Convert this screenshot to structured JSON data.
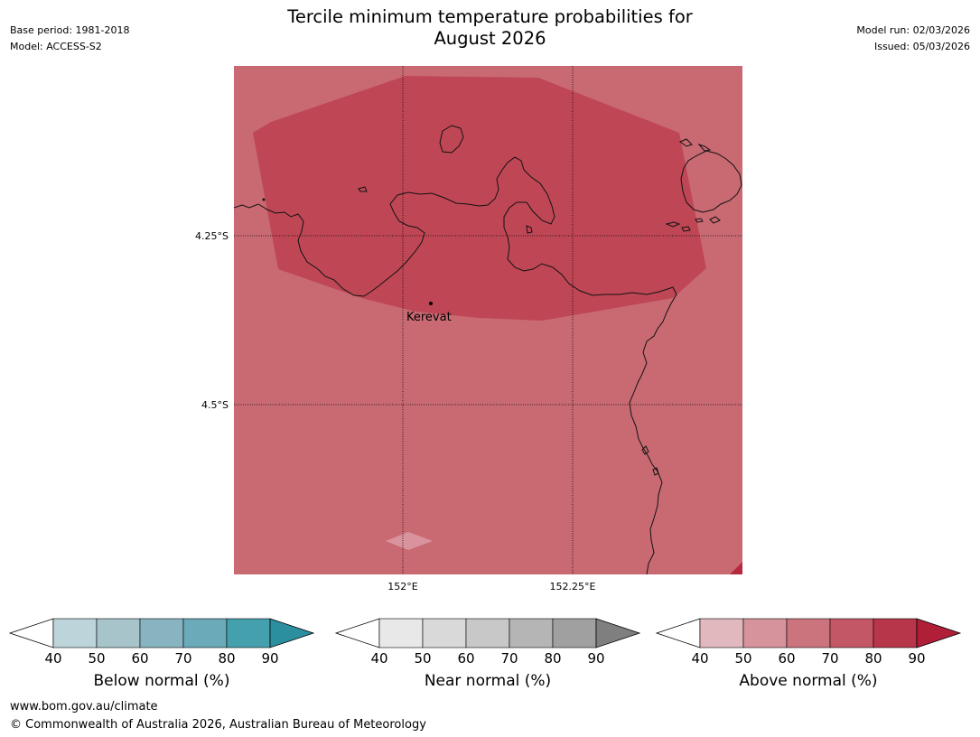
{
  "title_line1": "Tercile minimum temperature probabilities for",
  "title_line2": "August 2026",
  "meta_left": {
    "base_period": "Base period: 1981-2018",
    "model": "Model: ACCESS-S2"
  },
  "meta_right": {
    "model_run": "Model run: 02/03/2026",
    "issued": "Issued: 05/03/2026"
  },
  "map": {
    "lat_labels": [
      "4.25°S",
      "4.5°S"
    ],
    "lon_labels": [
      "152°E",
      "152.25°E"
    ],
    "place": {
      "name": "Kerevat",
      "icon": "location-dot-icon"
    },
    "colors": {
      "background_60_70": "#c96a73",
      "region_70_80": "#bf4755",
      "patch_50_60": "#d9939d",
      "corner_80_90": "#b52a40",
      "coastline": "#111111"
    }
  },
  "colorbars": [
    {
      "label": "Below normal (%)",
      "ticks": [
        "40",
        "50",
        "60",
        "70",
        "80",
        "90"
      ],
      "colors": [
        "#ffffff",
        "#bdd4da",
        "#a6c4ca",
        "#87b4c0",
        "#6aaab9",
        "#45a0ae",
        "#2b8fa0"
      ]
    },
    {
      "label": "Near normal (%)",
      "ticks": [
        "40",
        "50",
        "60",
        "70",
        "80",
        "90"
      ],
      "colors": [
        "#ffffff",
        "#e8e8e8",
        "#d9d9d9",
        "#c8c8c8",
        "#b5b5b5",
        "#a0a0a0",
        "#7f7f7f"
      ]
    },
    {
      "label": "Above normal (%)",
      "ticks": [
        "40",
        "50",
        "60",
        "70",
        "80",
        "90"
      ],
      "colors": [
        "#ffffff",
        "#e1b8be",
        "#d6939c",
        "#cc747e",
        "#c45766",
        "#b8364a",
        "#b01e38"
      ]
    }
  ],
  "footer": {
    "url": "www.bom.gov.au/climate",
    "copyright": "© Commonwealth of Australia 2026, Australian Bureau of Meteorology"
  }
}
